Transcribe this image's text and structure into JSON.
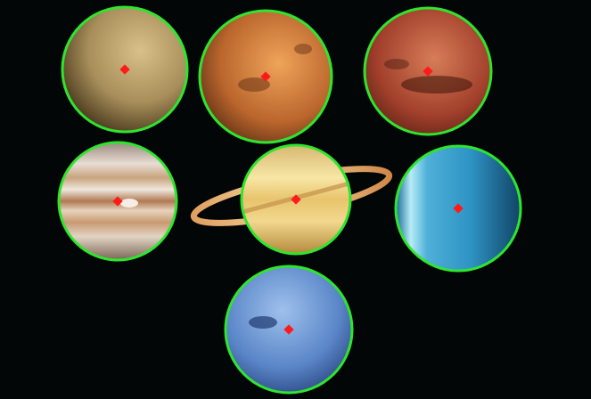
{
  "scene": {
    "background": "#030606",
    "outline_color": "#2ee62e",
    "marker_color": "#ff1a1a",
    "planets": [
      {
        "name": "mercury",
        "colors": [
          "#d8c08a",
          "#a88e5a",
          "#3a2c14"
        ]
      },
      {
        "name": "venus",
        "colors": [
          "#f0a45a",
          "#b9652c",
          "#4a2410"
        ]
      },
      {
        "name": "mars",
        "colors": [
          "#d77d58",
          "#a2402c",
          "#4a1a10"
        ]
      },
      {
        "name": "jupiter",
        "colors": [
          "#efe2d0",
          "#c99a72",
          "#5a4434"
        ]
      },
      {
        "name": "saturn",
        "colors": [
          "#f7e6a6",
          "#d6ad58",
          "#7a5a20"
        ]
      },
      {
        "name": "uranus",
        "colors": [
          "#7ed2ee",
          "#2e93c4",
          "#114466"
        ]
      },
      {
        "name": "neptune",
        "colors": [
          "#9ec0ec",
          "#5a86c8",
          "#243e78"
        ]
      }
    ]
  }
}
